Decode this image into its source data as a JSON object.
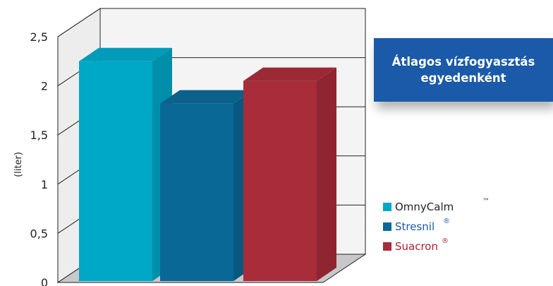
{
  "chart_data": {
    "type": "bar",
    "title": "Átlagos vízfogyasztás egyedenként",
    "title_lines": [
      "Átlagos vízfogyasztás",
      "egyedenként"
    ],
    "ylabel": "(liter)",
    "ylim": [
      0,
      2.5
    ],
    "yticks": [
      "0",
      "0,5",
      "1",
      "1,5",
      "2",
      "2,5"
    ],
    "grid": true,
    "legend_position": "right",
    "series": [
      {
        "name": "OmnyCalm",
        "mark": "™",
        "value": 2.25,
        "color": "#00a8c8",
        "label_color": "#222222"
      },
      {
        "name": "Stresnil",
        "mark": "®",
        "value": 1.82,
        "color": "#0a6896",
        "label_color": "#1a5aa8"
      },
      {
        "name": "Suacron",
        "mark": "®",
        "value": 2.05,
        "color": "#a82c3a",
        "label_color": "#b02030"
      }
    ]
  }
}
